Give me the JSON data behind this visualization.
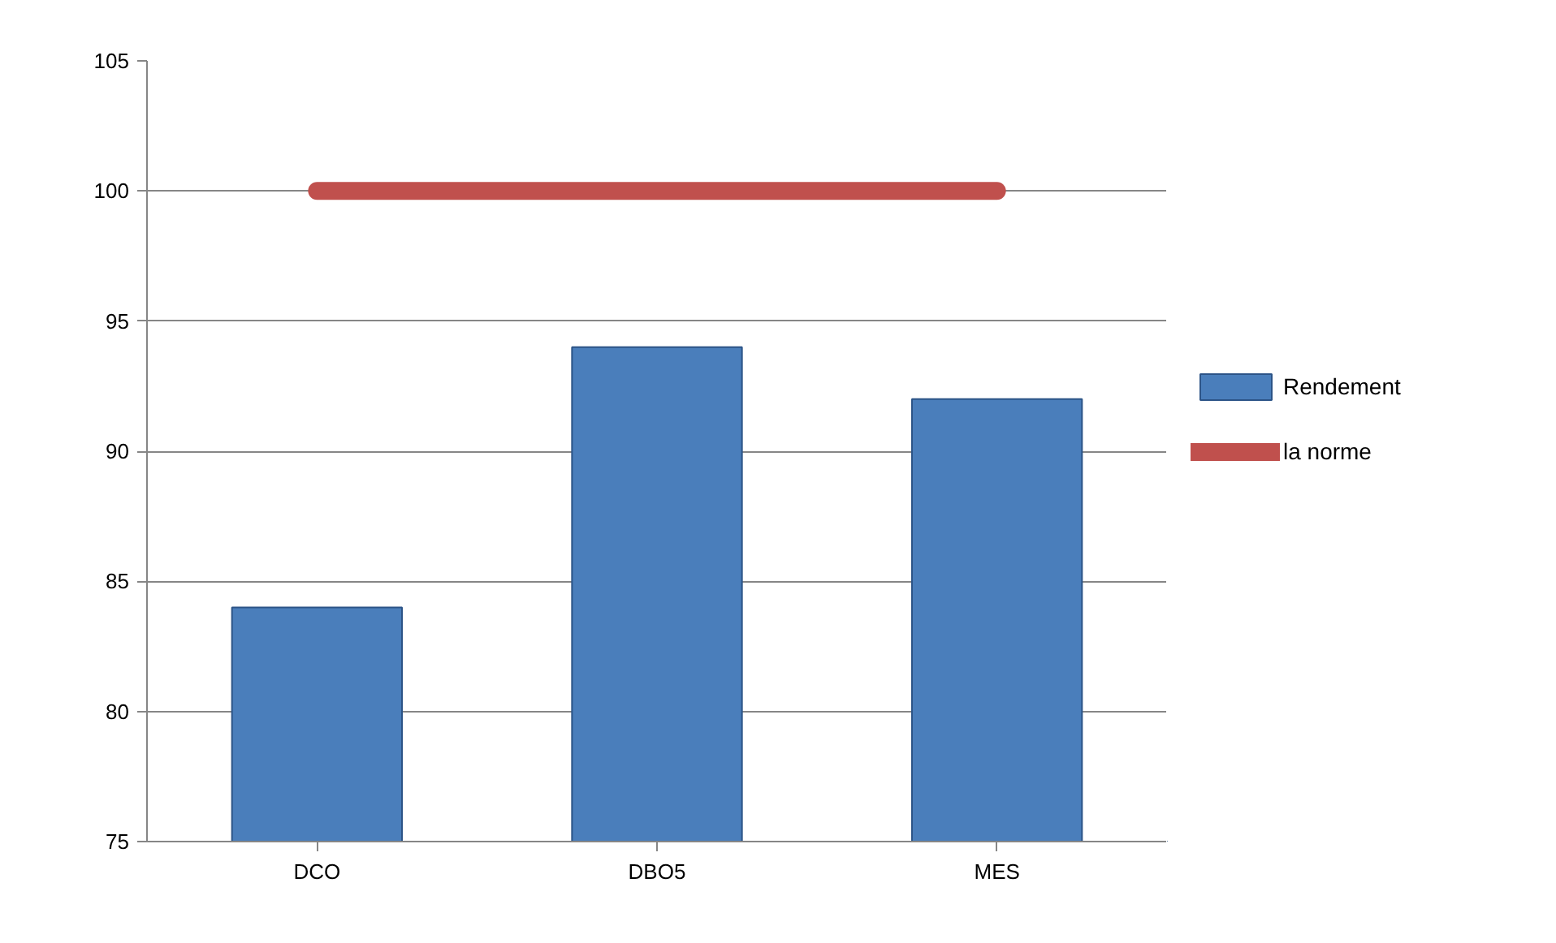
{
  "chart_data": {
    "type": "bar",
    "categories": [
      "DCO",
      "DBO5",
      "MES"
    ],
    "series": [
      {
        "name": "Rendement",
        "color": "#4a7ebb",
        "values": [
          84,
          94,
          92
        ]
      },
      {
        "name": "la norme",
        "type": "line",
        "color": "#c0504d",
        "values": [
          100,
          100,
          100
        ]
      }
    ],
    "ylim": [
      75,
      105
    ],
    "yticks": [
      75,
      80,
      85,
      90,
      95,
      100,
      105
    ],
    "grid": "y",
    "legend": "right"
  }
}
